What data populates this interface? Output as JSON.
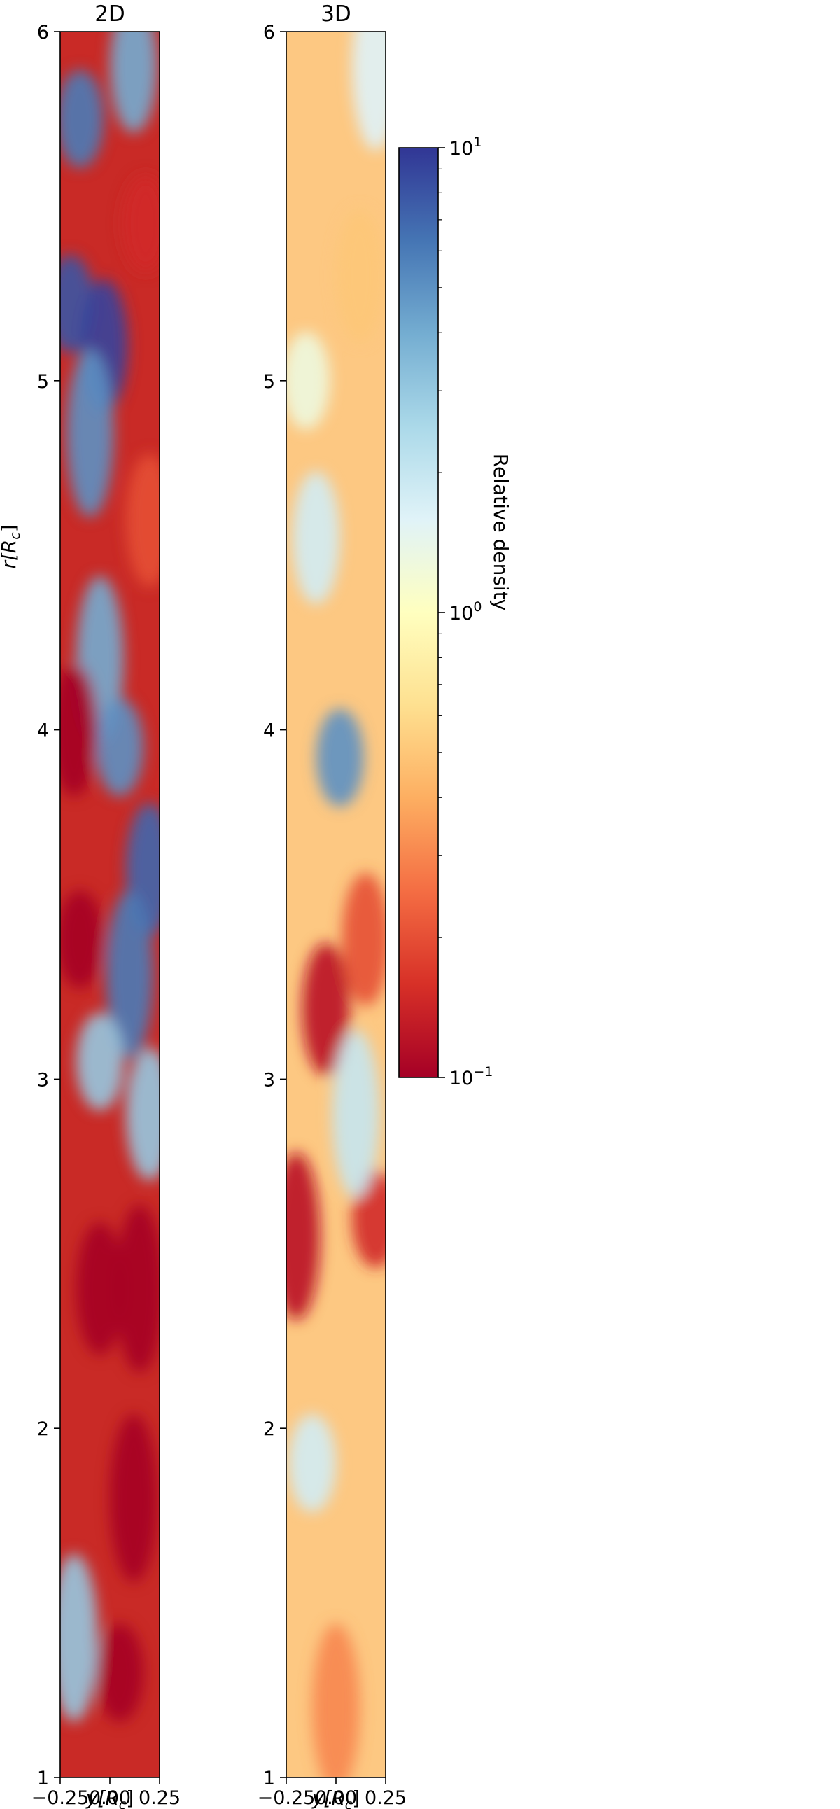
{
  "chart_data": [
    {
      "type": "heatmap",
      "title": "2D",
      "xlabel": "y[R",
      "xlabel_sub": "c",
      "xlabel_close": "]",
      "ylabel": "r[R",
      "ylabel_sub": "c",
      "ylabel_close": "]",
      "xlim": [
        -0.25,
        0.25
      ],
      "ylim": [
        1,
        6
      ],
      "x_ticks": [
        -0.25,
        0.0,
        0.25
      ],
      "x_tick_labels": [
        "−0.25",
        "0.00",
        "0.25"
      ],
      "y_ticks": [
        1,
        2,
        3,
        4,
        5,
        6
      ],
      "y_tick_labels": [
        "1",
        "2",
        "3",
        "4",
        "5",
        "6"
      ],
      "features": [
        {
          "x": -0.2,
          "y": 5.22,
          "v": 8.0
        },
        {
          "x": -0.03,
          "y": 5.1,
          "v": 9.0
        },
        {
          "x": -0.1,
          "y": 4.85,
          "v": 5.0
        },
        {
          "x": -0.15,
          "y": 5.75,
          "v": 6.0
        },
        {
          "x": 0.12,
          "y": 5.9,
          "v": 4.0
        },
        {
          "x": -0.05,
          "y": 4.2,
          "v": 4.0
        },
        {
          "x": 0.05,
          "y": 3.95,
          "v": 5.0
        },
        {
          "x": 0.2,
          "y": 3.6,
          "v": 7.0
        },
        {
          "x": 0.1,
          "y": 3.3,
          "v": 6.0
        },
        {
          "x": -0.05,
          "y": 3.05,
          "v": 3.0
        },
        {
          "x": 0.2,
          "y": 2.9,
          "v": 3.0
        },
        {
          "x": -0.18,
          "y": 1.4,
          "v": 3.0
        },
        {
          "x": -0.15,
          "y": 3.4,
          "v": 0.03
        },
        {
          "x": -0.05,
          "y": 2.4,
          "v": 0.03
        },
        {
          "x": 0.12,
          "y": 1.8,
          "v": 0.02
        },
        {
          "x": 0.05,
          "y": 1.3,
          "v": 0.03
        },
        {
          "x": -0.18,
          "y": 4.0,
          "v": 0.04
        },
        {
          "x": 0.15,
          "y": 2.4,
          "v": 0.03
        },
        {
          "x": 0.18,
          "y": 5.45,
          "v": 0.15
        },
        {
          "x": 0.2,
          "y": 4.6,
          "v": 0.2
        }
      ]
    },
    {
      "type": "heatmap",
      "title": "3D",
      "xlabel": "y[R",
      "xlabel_sub": "c",
      "xlabel_close": "]",
      "xlim": [
        -0.25,
        0.25
      ],
      "ylim": [
        1,
        6
      ],
      "x_ticks": [
        -0.25,
        0.0,
        0.25
      ],
      "x_tick_labels": [
        "−0.25",
        "0.00",
        "0.25"
      ],
      "y_ticks": [
        1,
        2,
        3,
        4,
        5,
        6
      ],
      "y_tick_labels": [
        "1",
        "2",
        "3",
        "4",
        "5",
        "6"
      ],
      "features": [
        {
          "x": 0.02,
          "y": 3.92,
          "v": 5.0
        },
        {
          "x": -0.1,
          "y": 4.55,
          "v": 1.8
        },
        {
          "x": 0.2,
          "y": 5.9,
          "v": 1.6
        },
        {
          "x": -0.15,
          "y": 5.0,
          "v": 1.3
        },
        {
          "x": -0.05,
          "y": 3.2,
          "v": 0.12
        },
        {
          "x": -0.2,
          "y": 2.55,
          "v": 0.12
        },
        {
          "x": 0.2,
          "y": 2.6,
          "v": 0.15
        },
        {
          "x": 0.15,
          "y": 3.4,
          "v": 0.2
        },
        {
          "x": 0.1,
          "y": 2.9,
          "v": 2.0
        },
        {
          "x": -0.12,
          "y": 1.9,
          "v": 1.8
        },
        {
          "x": 0.12,
          "y": 5.3,
          "v": 0.5
        },
        {
          "x": 0.0,
          "y": 1.2,
          "v": 0.3
        }
      ]
    }
  ],
  "colorbar": {
    "label": "Relative density",
    "scale": "log",
    "colormap": "RdYlBu",
    "range": [
      0.1,
      10
    ],
    "ticks": [
      {
        "value": 10,
        "base": "10",
        "exp": "1"
      },
      {
        "value": 1,
        "base": "10",
        "exp": "0"
      },
      {
        "value": 0.1,
        "base": "10",
        "exp": "−1"
      }
    ]
  }
}
